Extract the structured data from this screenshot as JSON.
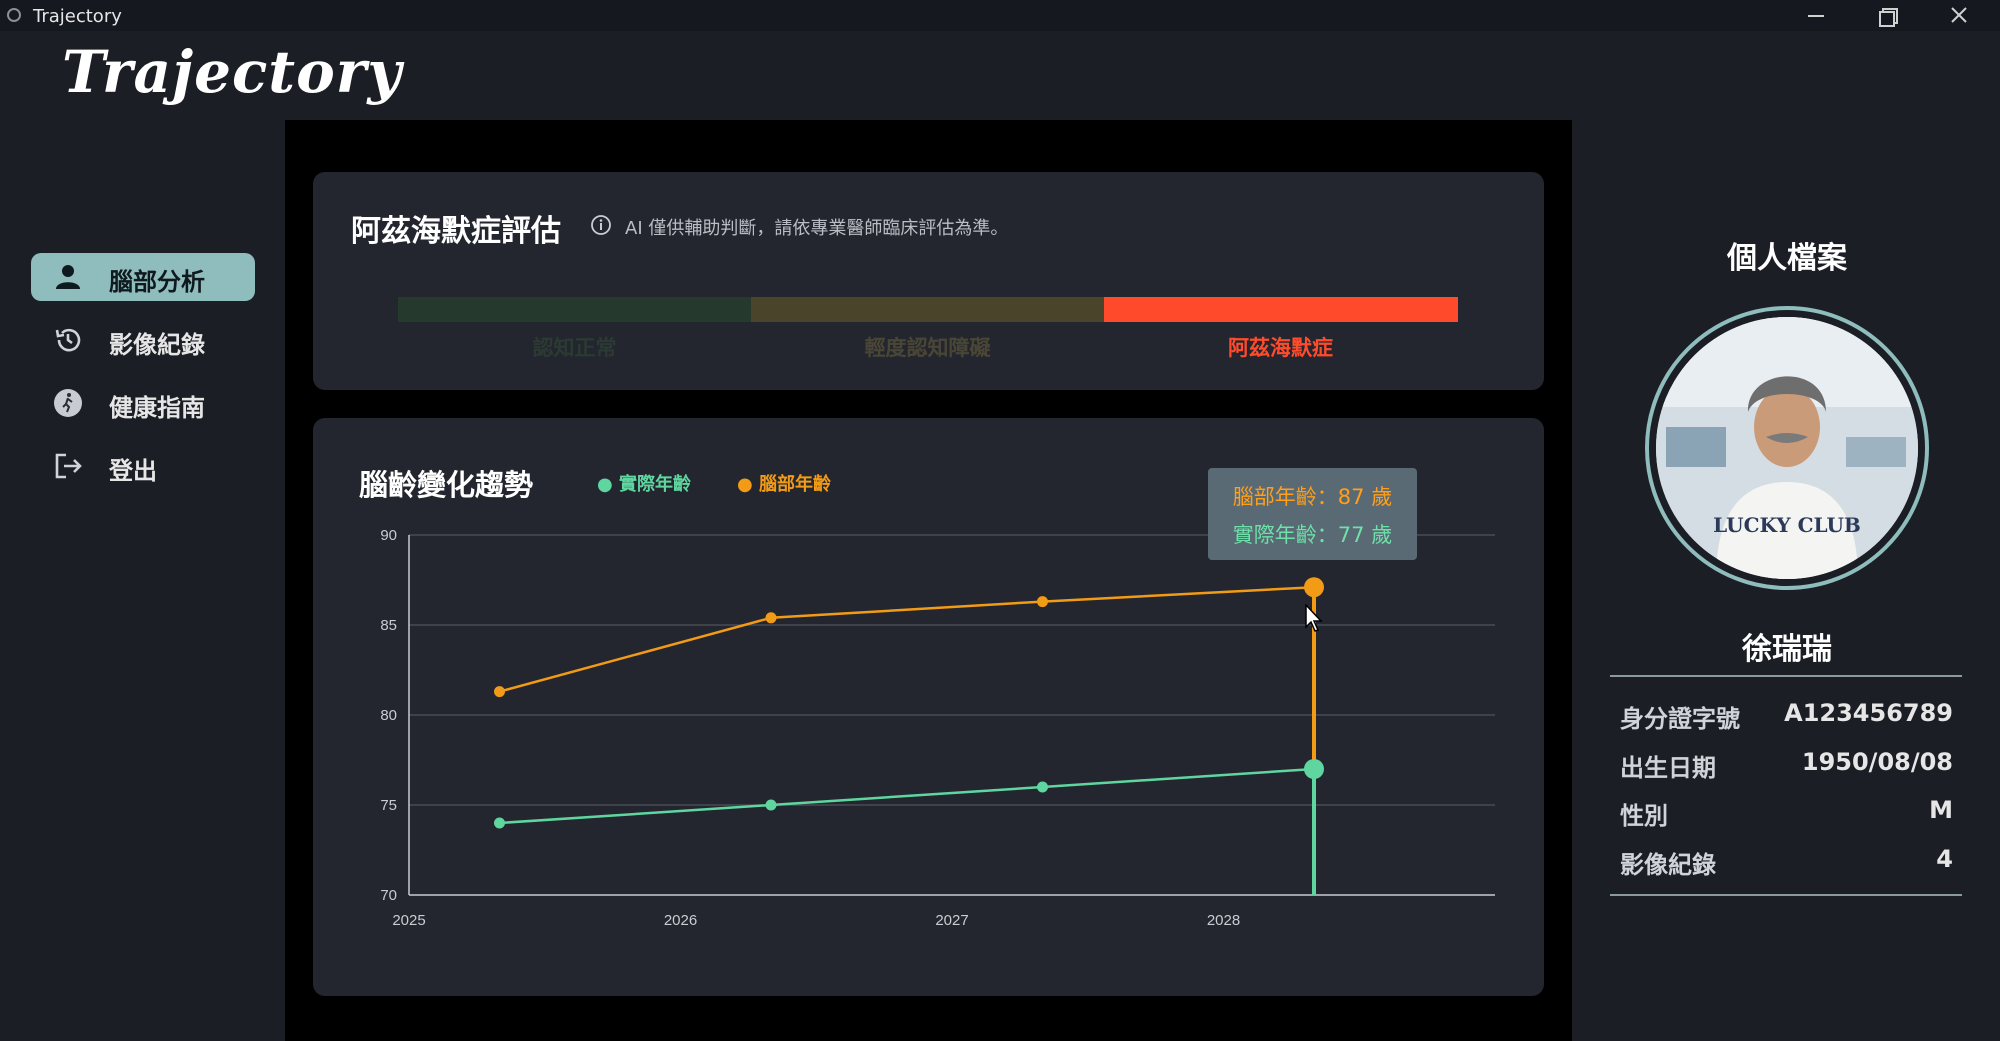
{
  "window": {
    "title": "Trajectory"
  },
  "logo": "Trajectory",
  "sidebar": {
    "items": [
      {
        "label": "腦部分析",
        "icon": "user-icon",
        "active": true
      },
      {
        "label": "影像紀錄",
        "icon": "history-icon",
        "active": false
      },
      {
        "label": "健康指南",
        "icon": "running-icon",
        "active": false
      },
      {
        "label": "登出",
        "icon": "logout-icon",
        "active": false
      }
    ]
  },
  "assessment": {
    "title": "阿茲海默症評估",
    "note": "AI 僅供輔助判斷，請依專業醫師臨床評估為準。",
    "levels": [
      "認知正常",
      "輕度認知障礙",
      "阿茲海默症"
    ],
    "current_level": "阿茲海默症",
    "colors": {
      "normal": "#26392d",
      "mild": "#4a452a",
      "alzheimer": "#ff4b2b"
    }
  },
  "trend": {
    "title": "腦齡變化趨勢",
    "legend": {
      "actual": "實際年齡",
      "brain": "腦部年齡"
    },
    "tooltip": {
      "brain": "腦部年齡：87 歲",
      "actual": "實際年齡：77 歲"
    }
  },
  "chart_data": {
    "type": "line",
    "x_ticks": [
      "2025",
      "2026",
      "2027",
      "2028"
    ],
    "x": [
      "2025-05",
      "2026-05",
      "2027-05",
      "2028-05"
    ],
    "xlim": [
      "2025-01",
      "2029-01"
    ],
    "ylim": [
      70,
      90
    ],
    "y_ticks": [
      70,
      75,
      80,
      85,
      90
    ],
    "grid": true,
    "legend_position": "top-left",
    "series": [
      {
        "name": "實際年齡",
        "color": "#5fd6a0",
        "values": [
          74,
          75,
          76,
          77
        ]
      },
      {
        "name": "腦部年齡",
        "color": "#f29b16",
        "values": [
          81.3,
          85.4,
          86.3,
          87.1
        ]
      }
    ],
    "highlight_index": 3
  },
  "profile": {
    "title": "個人檔案",
    "name": "徐瑞瑞",
    "fields": [
      {
        "label": "身分證字號",
        "value": "A123456789"
      },
      {
        "label": "出生日期",
        "value": "1950/08/08"
      },
      {
        "label": "性別",
        "value": "M"
      },
      {
        "label": "影像紀錄",
        "value": "4"
      }
    ]
  }
}
